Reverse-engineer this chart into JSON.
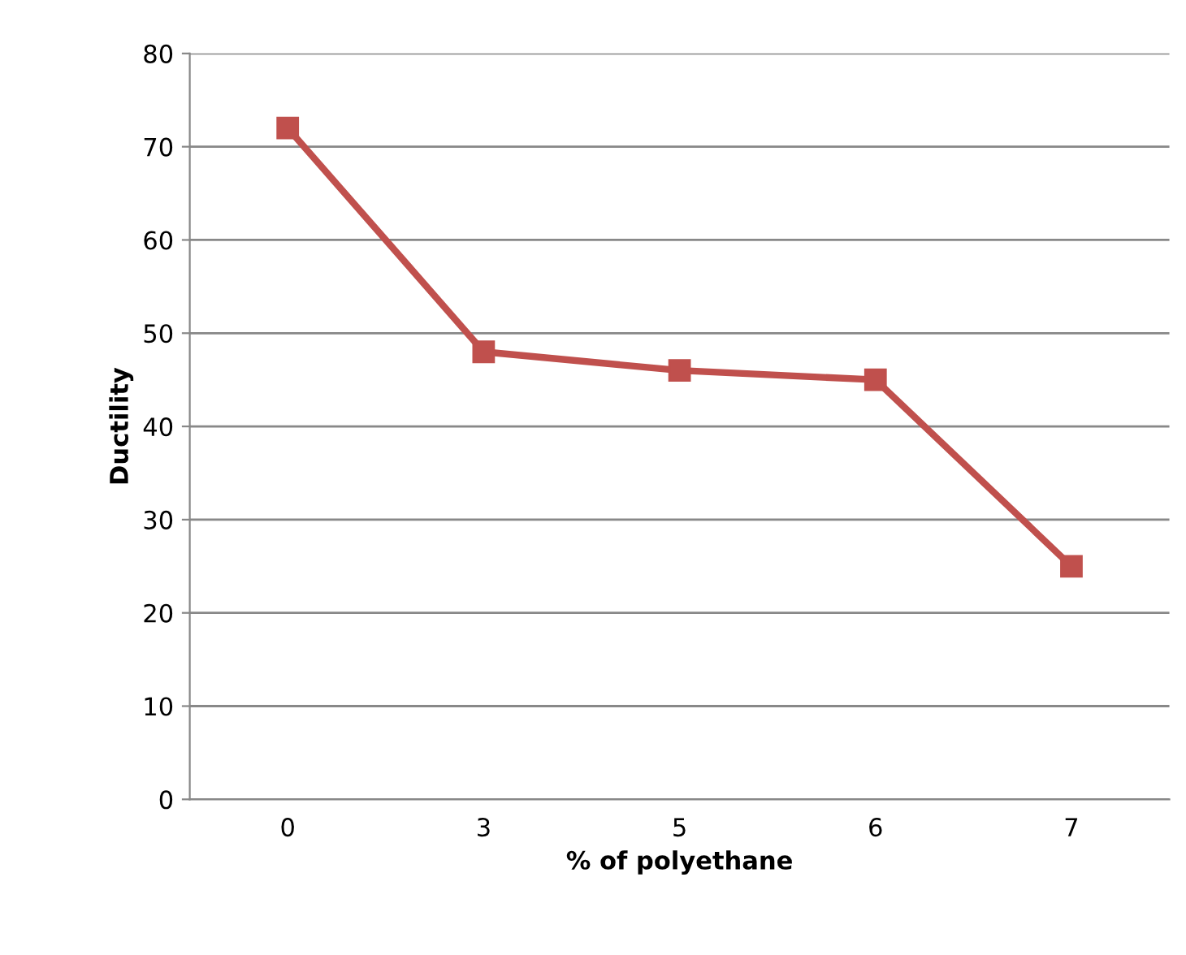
{
  "chart_data": {
    "type": "line",
    "xlabel": "% of polyethane",
    "ylabel": "Ductility",
    "categories": [
      "0",
      "3",
      "5",
      "6",
      "7"
    ],
    "series": [
      {
        "color": "#c0504d",
        "values": [
          72,
          48,
          46,
          45,
          25
        ]
      }
    ],
    "ylim": [
      0,
      80
    ],
    "yticks": [
      0,
      10,
      20,
      30,
      40,
      50,
      60,
      70,
      80
    ],
    "grid": "y",
    "marker": "square",
    "line_style": "solid",
    "legend": false
  }
}
